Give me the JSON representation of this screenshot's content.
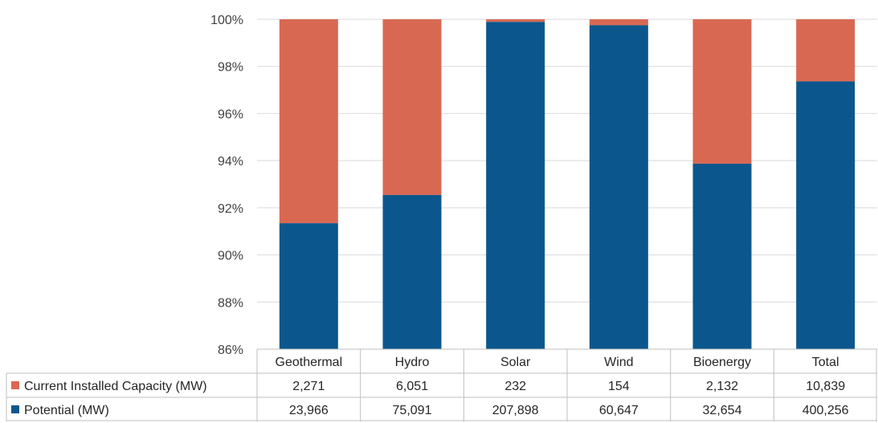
{
  "chart_data": {
    "type": "bar",
    "stacked": "percent",
    "categories": [
      "Geothermal",
      "Hydro",
      "Solar",
      "Wind",
      "Bioenergy",
      "Total"
    ],
    "series": [
      {
        "name": "Potential (MW)",
        "values": [
          23966,
          75091,
          207898,
          60647,
          32654,
          400256
        ],
        "table_labels": [
          "23,966",
          "75,091",
          "207,898",
          "60,647",
          "32,654",
          "400,256"
        ],
        "color": "#0B578D"
      },
      {
        "name": "Current Installed Capacity (MW)",
        "values": [
          2271,
          6051,
          232,
          154,
          2132,
          10839
        ],
        "table_labels": [
          "2,271",
          "6,051",
          "232",
          "154",
          "2,132",
          "10,839"
        ],
        "color": "#D96853"
      }
    ],
    "ylim": [
      86,
      100
    ],
    "yticks": [
      86,
      88,
      90,
      92,
      94,
      96,
      98,
      100
    ],
    "ytick_labels": [
      "86%",
      "88%",
      "90%",
      "92%",
      "94%",
      "96%",
      "98%",
      "100%"
    ],
    "grid": true,
    "legend": "data-table"
  }
}
